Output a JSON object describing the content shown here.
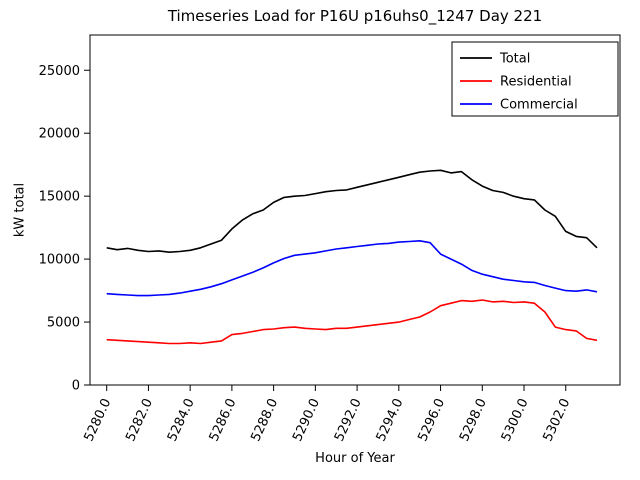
{
  "chart_data": {
    "type": "line",
    "title": "Timeseries Load for P16U p16uhs0_1247  Day 221",
    "xlabel": "Hour of Year",
    "ylabel": "kW total",
    "xlim": [
      5279.2,
      5304.6
    ],
    "ylim": [
      0,
      27800
    ],
    "grid": false,
    "legend_position": "upper right",
    "xticks": {
      "values": [
        5280,
        5282,
        5284,
        5286,
        5288,
        5290,
        5292,
        5294,
        5296,
        5298,
        5300,
        5302
      ],
      "labels": [
        "5280.0",
        "5282.0",
        "5284.0",
        "5286.0",
        "5288.0",
        "5290.0",
        "5292.0",
        "5294.0",
        "5296.0",
        "5298.0",
        "5300.0",
        "5302.0"
      ]
    },
    "yticks": {
      "values": [
        0,
        5000,
        10000,
        15000,
        20000,
        25000
      ],
      "labels": [
        "0",
        "5000",
        "10000",
        "15000",
        "20000",
        "25000"
      ]
    },
    "x": [
      5280.0,
      5280.5,
      5281.0,
      5281.5,
      5282.0,
      5282.5,
      5283.0,
      5283.5,
      5284.0,
      5284.5,
      5285.0,
      5285.5,
      5286.0,
      5286.5,
      5287.0,
      5287.5,
      5288.0,
      5288.5,
      5289.0,
      5289.5,
      5290.0,
      5290.5,
      5291.0,
      5291.5,
      5292.0,
      5292.5,
      5293.0,
      5293.5,
      5294.0,
      5294.5,
      5295.0,
      5295.5,
      5296.0,
      5296.5,
      5297.0,
      5297.5,
      5298.0,
      5298.5,
      5299.0,
      5299.5,
      5300.0,
      5300.5,
      5301.0,
      5301.5,
      5302.0,
      5302.5,
      5303.0,
      5303.5
    ],
    "series": [
      {
        "name": "Total",
        "color": "#000000",
        "values": [
          10900,
          10750,
          10850,
          10700,
          10600,
          10650,
          10550,
          10600,
          10700,
          10900,
          11200,
          11500,
          12400,
          13100,
          13600,
          13900,
          14500,
          14900,
          15000,
          15050,
          15200,
          15350,
          15450,
          15500,
          15700,
          15900,
          16100,
          16300,
          16500,
          16700,
          16900,
          17000,
          17050,
          16850,
          16950,
          16300,
          15800,
          15450,
          15300,
          15000,
          14800,
          14700,
          13900,
          13400,
          12200,
          11800,
          11700,
          10900
        ]
      },
      {
        "name": "Residential",
        "color": "#ff0000",
        "values": [
          3600,
          3550,
          3500,
          3450,
          3400,
          3350,
          3300,
          3300,
          3350,
          3300,
          3400,
          3500,
          4000,
          4100,
          4250,
          4400,
          4450,
          4550,
          4600,
          4500,
          4450,
          4400,
          4500,
          4500,
          4600,
          4700,
          4800,
          4900,
          5000,
          5200,
          5400,
          5800,
          6300,
          6500,
          6700,
          6650,
          6750,
          6600,
          6650,
          6550,
          6600,
          6500,
          5800,
          4600,
          4400,
          4300,
          3700,
          3550
        ]
      },
      {
        "name": "Commercial",
        "color": "#0000ff",
        "values": [
          7250,
          7200,
          7150,
          7100,
          7100,
          7150,
          7200,
          7300,
          7450,
          7600,
          7800,
          8050,
          8350,
          8650,
          8950,
          9300,
          9700,
          10050,
          10300,
          10400,
          10500,
          10650,
          10800,
          10900,
          11000,
          11100,
          11200,
          11250,
          11350,
          11400,
          11450,
          11300,
          10400,
          10000,
          9600,
          9100,
          8800,
          8600,
          8400,
          8300,
          8200,
          8150,
          7900,
          7700,
          7500,
          7450,
          7550,
          7400
        ]
      }
    ]
  }
}
